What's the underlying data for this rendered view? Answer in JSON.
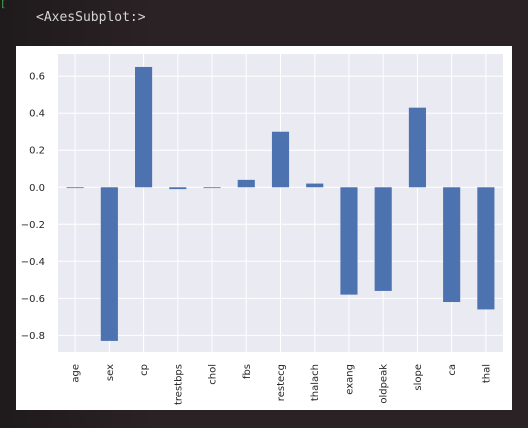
{
  "output": {
    "prompt": "[",
    "text": "<AxesSubplot:>"
  },
  "chart_data": {
    "type": "bar",
    "categories": [
      "age",
      "sex",
      "cp",
      "trestbps",
      "chol",
      "fbs",
      "restecg",
      "thalach",
      "exang",
      "oldpeak",
      "slope",
      "ca",
      "thal"
    ],
    "values": [
      0.0,
      -0.83,
      0.65,
      -0.01,
      0.0,
      0.04,
      0.3,
      0.02,
      -0.58,
      -0.56,
      0.43,
      -0.62,
      -0.66
    ],
    "ylim": [
      -0.89,
      0.72
    ],
    "yticks": [
      -0.8,
      -0.6,
      -0.4,
      -0.2,
      0.0,
      0.2,
      0.4,
      0.6
    ],
    "ytick_labels": [
      "−0.8",
      "−0.6",
      "−0.4",
      "−0.2",
      "0.0",
      "0.2",
      "0.4",
      "0.6"
    ],
    "title": "",
    "xlabel": "",
    "ylabel": "",
    "grid": true,
    "colors": {
      "bar": "#4c72b0",
      "plot_background": "#eaeaf2",
      "grid": "#ffffff"
    }
  }
}
